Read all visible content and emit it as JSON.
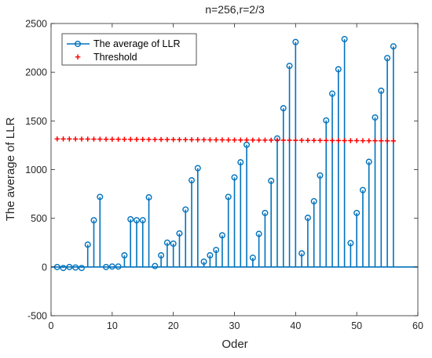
{
  "chart_data": {
    "type": "stem",
    "title": "n=256,r=2/3",
    "xlabel": "Oder",
    "ylabel": "The average of LLR",
    "xlim": [
      0,
      60
    ],
    "ylim": [
      -500,
      2500
    ],
    "xticks": [
      0,
      10,
      20,
      30,
      40,
      50,
      60
    ],
    "yticks": [
      -500,
      0,
      500,
      1000,
      1500,
      2000,
      2500
    ],
    "xtick_labels": [
      "0",
      "10",
      "20",
      "30",
      "40",
      "50",
      "60"
    ],
    "ytick_labels": [
      "-500",
      "0",
      "500",
      "1000",
      "1500",
      "2000",
      "2500"
    ],
    "legend_position": "top-left",
    "grid": false,
    "series": [
      {
        "name": "The average of LLR",
        "style": "stem",
        "color": "#0072BD",
        "x": [
          1,
          2,
          3,
          4,
          5,
          6,
          7,
          8,
          9,
          10,
          11,
          12,
          13,
          14,
          15,
          16,
          17,
          18,
          19,
          20,
          21,
          22,
          23,
          24,
          25,
          26,
          27,
          28,
          29,
          30,
          31,
          32,
          33,
          34,
          35,
          36,
          37,
          38,
          39,
          40,
          41,
          42,
          43,
          44,
          45,
          46,
          47,
          48,
          49,
          50,
          51,
          52,
          53,
          54,
          55,
          56
        ],
        "values": [
          0,
          -10,
          0,
          -5,
          -10,
          230,
          480,
          720,
          0,
          5,
          5,
          120,
          490,
          480,
          480,
          715,
          10,
          120,
          250,
          240,
          345,
          590,
          890,
          1015,
          55,
          120,
          175,
          325,
          720,
          920,
          1075,
          1255,
          95,
          340,
          555,
          885,
          1320,
          1630,
          2065,
          2310,
          140,
          505,
          675,
          940,
          1505,
          1780,
          2030,
          2340,
          245,
          555,
          790,
          1080,
          1535,
          1810,
          2145,
          2265
        ]
      },
      {
        "name": "Threshold",
        "style": "marker",
        "color": "#FF0000",
        "x_start": 1,
        "x_end": 56,
        "x_step": 1,
        "y_start": 1315,
        "y_end": 1295
      }
    ]
  }
}
